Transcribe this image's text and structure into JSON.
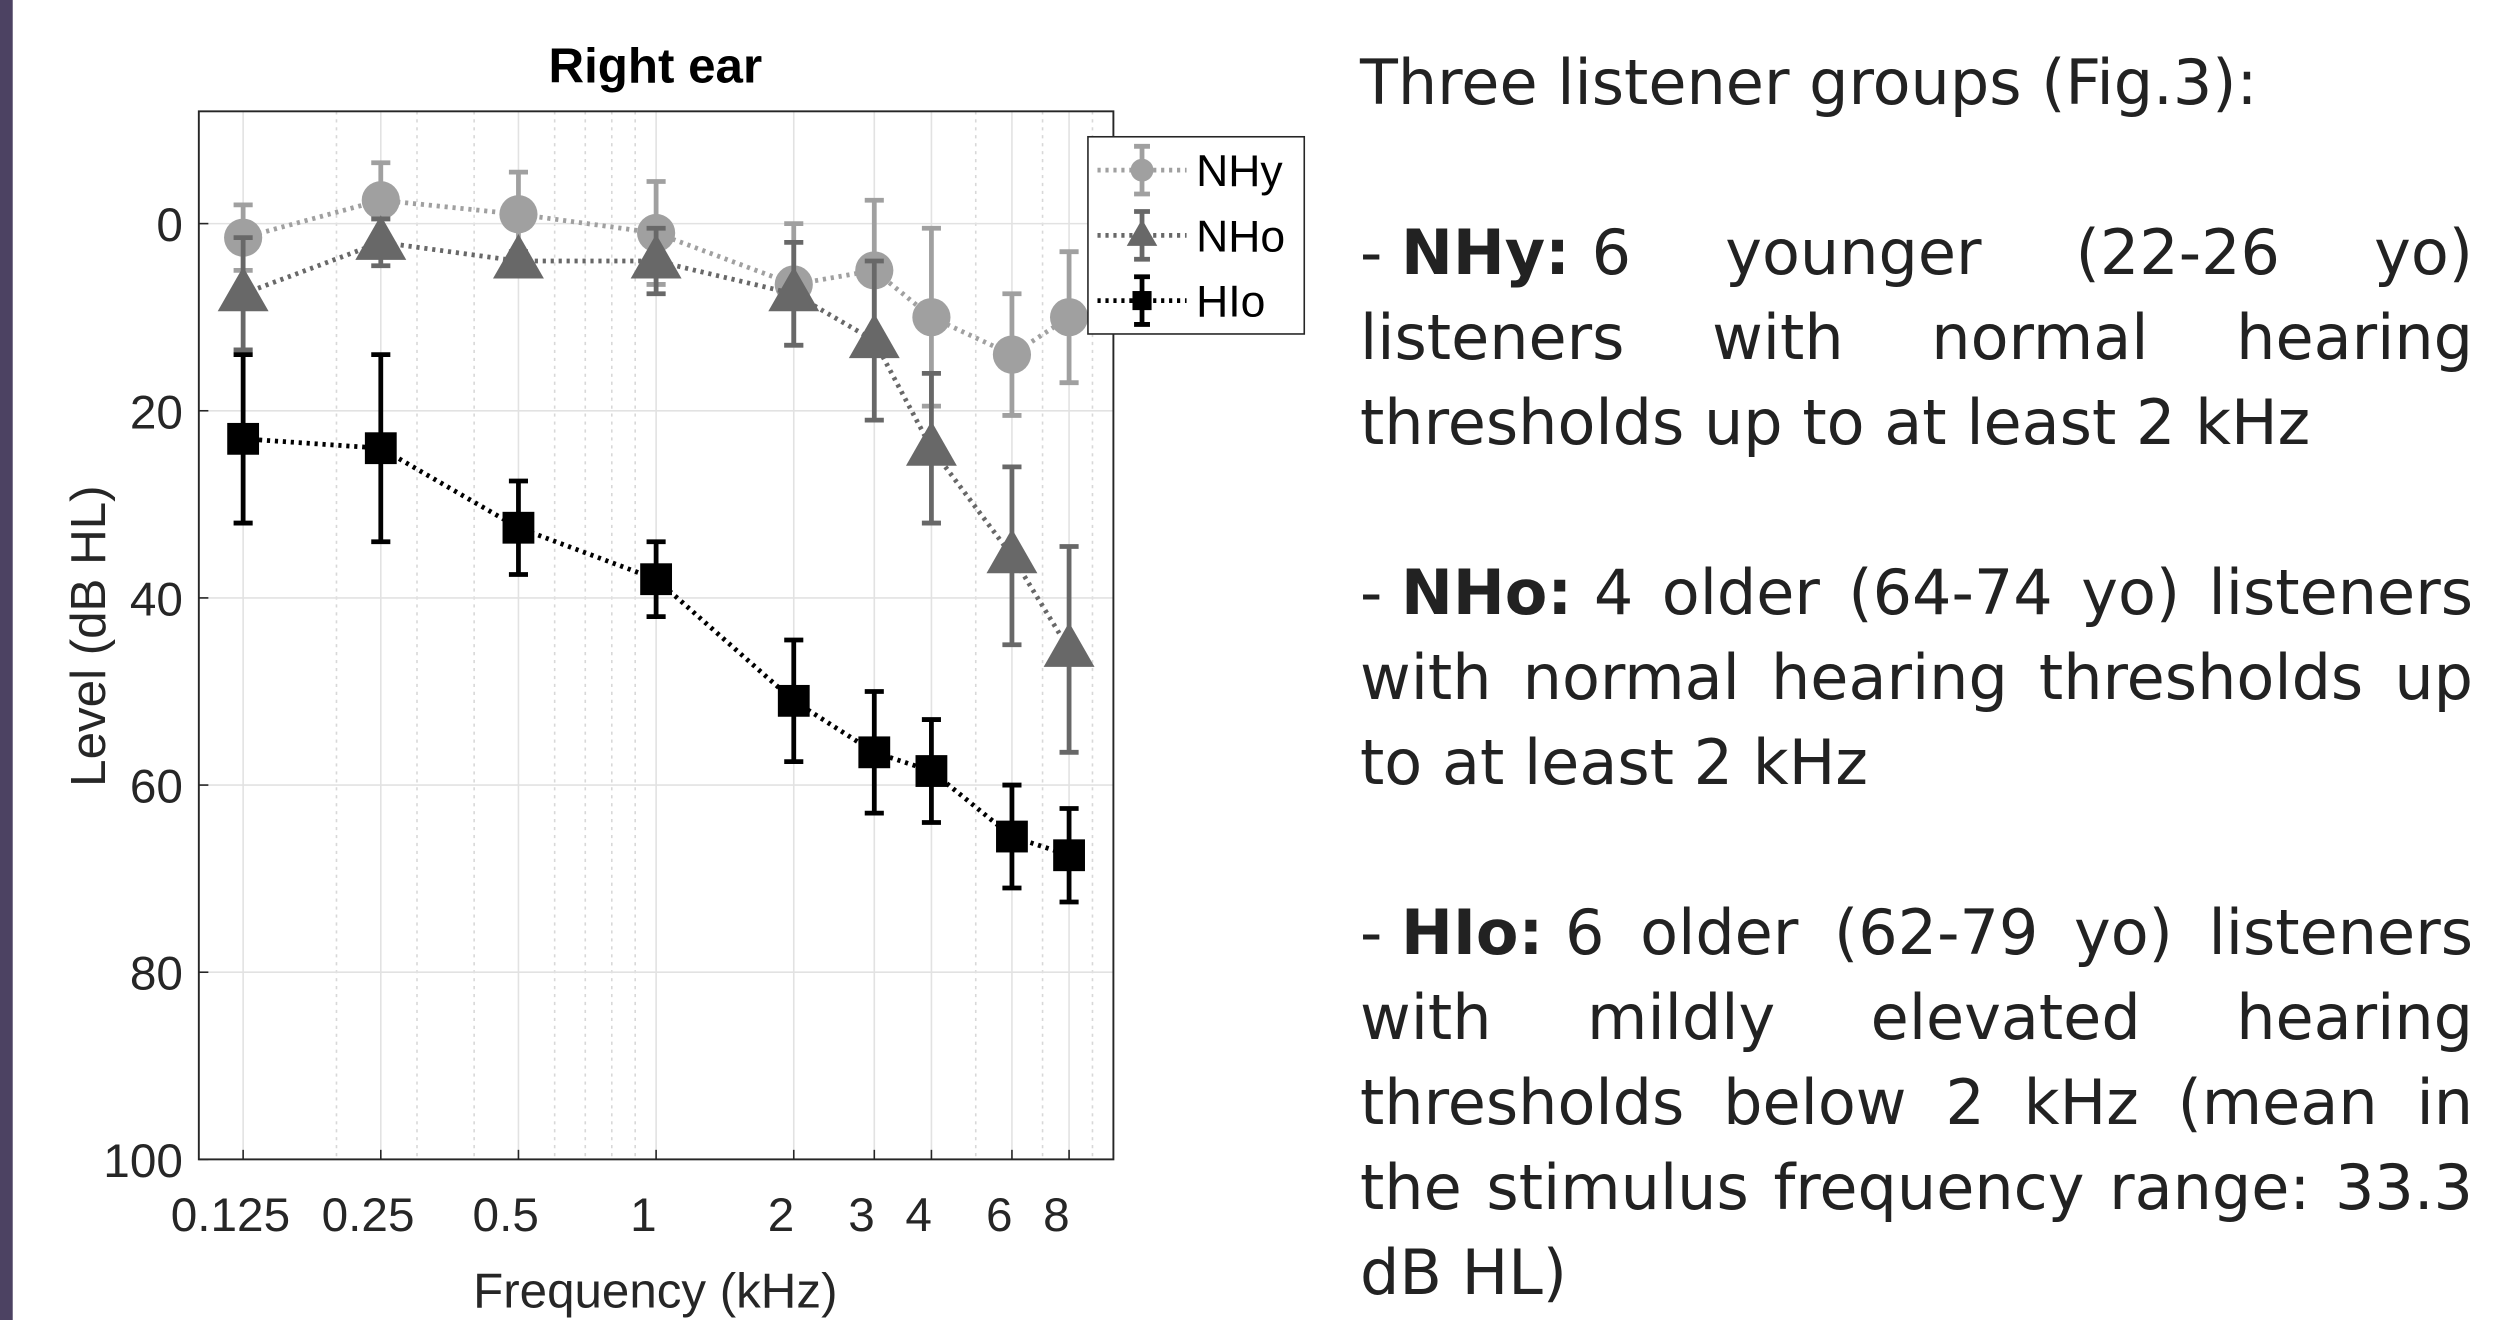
{
  "chart_data": {
    "type": "line",
    "title": "Right ear",
    "xlabel": "Frequency (kHz)",
    "ylabel": "Level (dB HL)",
    "x": [
      0.125,
      0.25,
      0.5,
      1,
      2,
      3,
      4,
      6,
      8
    ],
    "xlim": [
      0.1,
      10
    ],
    "xscale": "log",
    "xticks": [
      0.125,
      0.25,
      0.5,
      1,
      2,
      3,
      4,
      6,
      8
    ],
    "xminorticks": [
      0.2,
      0.3,
      0.4,
      0.6,
      0.7,
      0.8,
      0.9,
      5,
      7,
      9
    ],
    "ylim": [
      -12,
      100
    ],
    "y_reversed": true,
    "yticks": [
      0,
      20,
      40,
      60,
      80,
      100
    ],
    "grid": true,
    "legend": "upper right",
    "series": [
      {
        "name": "NHy",
        "color": "#a0a0a0",
        "marker": "circle",
        "values": [
          1.5,
          -2.5,
          -1,
          1,
          6.5,
          5,
          10,
          14,
          10
        ],
        "errors": [
          3.5,
          4,
          4.5,
          5.5,
          6.5,
          7.5,
          9.5,
          6.5,
          7
        ]
      },
      {
        "name": "NHo",
        "color": "#686868",
        "marker": "triangle",
        "values": [
          7.5,
          2,
          4,
          4,
          7.5,
          12.5,
          24,
          35.5,
          45.5
        ],
        "errors": [
          6,
          2.5,
          1,
          3.5,
          5.5,
          8.5,
          8,
          9.5,
          11
        ]
      },
      {
        "name": "HIo",
        "color": "#000000",
        "marker": "square",
        "values": [
          23,
          24,
          32.5,
          38,
          51,
          56.5,
          58.5,
          65.5,
          67.5
        ],
        "errors": [
          9,
          10,
          5,
          4,
          6.5,
          6.5,
          5.5,
          5.5,
          5
        ]
      }
    ]
  },
  "text": {
    "heading": "Three listener groups (Fig.3):",
    "bullet": "-",
    "items": [
      {
        "label": "NHy:",
        "text": "6 younger (22-26 yo) listeners with normal hearing thresholds up to at least 2 kHz"
      },
      {
        "label": "NHo:",
        "text": "4 older (64-74 yo) listeners with normal hearing thresholds up to at least 2 kHz"
      },
      {
        "label": "HIo:",
        "text": "6 older (62-79 yo) listeners with mildly elevated hearing thresholds below 2 kHz (mean in the stimulus fre­quency range: 33.3 dB HL)"
      }
    ]
  }
}
